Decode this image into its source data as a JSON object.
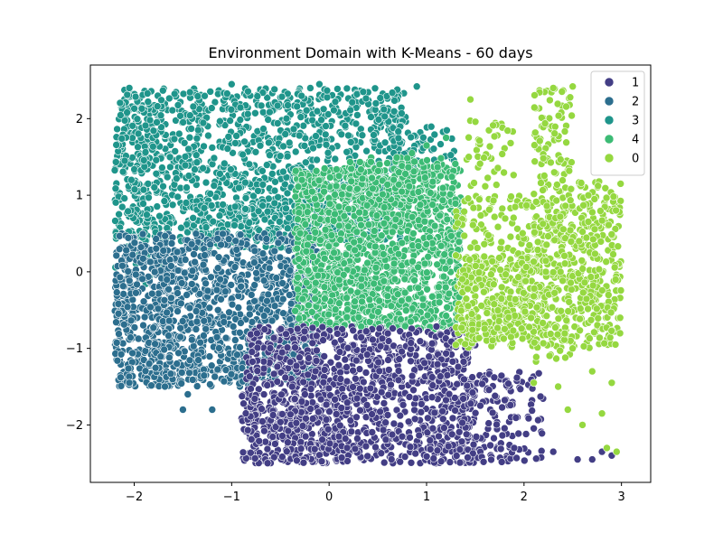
{
  "chart_data": {
    "type": "scatter",
    "title": "Environment Domain with K-Means - 60 days",
    "xlabel": "",
    "ylabel": "",
    "xlim": [
      -2.45,
      3.3
    ],
    "ylim": [
      -2.75,
      2.7
    ],
    "xticks": [
      -2,
      -1,
      0,
      1,
      2,
      3
    ],
    "xtick_labels": [
      "−2",
      "−1",
      "0",
      "1",
      "2",
      "3"
    ],
    "yticks": [
      -2,
      -1,
      0,
      1,
      2
    ],
    "ytick_labels": [
      "−2",
      "−1",
      "0",
      "1",
      "2"
    ],
    "grid": false,
    "legend_position": "top-right",
    "legend": [
      "1",
      "2",
      "3",
      "4",
      "0"
    ],
    "colors": {
      "1": "#433e85",
      "2": "#2c6e8e",
      "3": "#1f958b",
      "4": "#3cbb75",
      "0": "#95d840"
    },
    "series": [
      {
        "name": "3",
        "regions": [
          {
            "x": [
              -2.2,
              0.8
            ],
            "y": [
              0.4,
              2.4
            ],
            "n": 1300
          },
          {
            "x": [
              -2.2,
              -1.7
            ],
            "y": [
              -0.2,
              2.4
            ],
            "n": 120
          },
          {
            "x": [
              0.6,
              1.3
            ],
            "y": [
              1.3,
              1.9
            ],
            "n": 60
          },
          {
            "x": [
              -1.4,
              0.2
            ],
            "y": [
              0.3,
              0.9
            ],
            "n": 200
          }
        ],
        "points": [
          [
            0.9,
            2.42
          ],
          [
            -0.1,
            2.45
          ],
          [
            0.35,
            2.35
          ],
          [
            -2.05,
            2.4
          ],
          [
            -1.0,
            2.45
          ]
        ]
      },
      {
        "name": "2",
        "regions": [
          {
            "x": [
              -2.2,
              -0.1
            ],
            "y": [
              -1.5,
              0.5
            ],
            "n": 900
          },
          {
            "x": [
              -1.8,
              -0.3
            ],
            "y": [
              -1.5,
              0.3
            ],
            "n": 300
          },
          {
            "x": [
              -2.2,
              -1.6
            ],
            "y": [
              -1.5,
              0.4
            ],
            "n": 120
          }
        ],
        "points": [
          [
            -1.5,
            -1.8
          ],
          [
            -1.2,
            -1.8
          ],
          [
            -1.45,
            -1.6
          ],
          [
            -2.05,
            -1.45
          ]
        ]
      },
      {
        "name": "4",
        "regions": [
          {
            "x": [
              -0.35,
              1.35
            ],
            "y": [
              -0.75,
              1.35
            ],
            "n": 1500
          },
          {
            "x": [
              0.2,
              1.3
            ],
            "y": [
              1.0,
              1.5
            ],
            "n": 120
          }
        ],
        "points": [
          [
            1.0,
            1.65
          ],
          [
            1.2,
            1.75
          ],
          [
            0.85,
            1.55
          ]
        ]
      },
      {
        "name": "1",
        "regions": [
          {
            "x": [
              -0.85,
              1.5
            ],
            "y": [
              -2.5,
              -0.7
            ],
            "n": 1100
          },
          {
            "x": [
              1.0,
              2.2
            ],
            "y": [
              -2.5,
              -1.3
            ],
            "n": 200
          },
          {
            "x": [
              -0.9,
              0.2
            ],
            "y": [
              -2.5,
              -1.6
            ],
            "n": 200
          }
        ],
        "points": [
          [
            2.55,
            -2.45
          ],
          [
            2.8,
            -2.35
          ],
          [
            2.9,
            -2.4
          ],
          [
            2.3,
            -2.35
          ],
          [
            2.7,
            -2.45
          ],
          [
            1.9,
            -2.3
          ]
        ]
      },
      {
        "name": "0",
        "regions": [
          {
            "x": [
              1.3,
              3.0
            ],
            "y": [
              -1.0,
              1.0
            ],
            "n": 500
          },
          {
            "x": [
              2.1,
              2.5
            ],
            "y": [
              -1.2,
              2.4
            ],
            "n": 220
          },
          {
            "x": [
              1.35,
              2.1
            ],
            "y": [
              -0.9,
              0.2
            ],
            "n": 250
          },
          {
            "x": [
              2.55,
              3.0
            ],
            "y": [
              -0.8,
              1.2
            ],
            "n": 100
          },
          {
            "x": [
              1.4,
              1.9
            ],
            "y": [
              1.1,
              2.0
            ],
            "n": 40
          }
        ],
        "points": [
          [
            2.3,
            2.4
          ],
          [
            2.5,
            2.42
          ],
          [
            1.45,
            2.25
          ],
          [
            2.8,
            -1.85
          ],
          [
            2.95,
            -2.35
          ],
          [
            2.9,
            -1.45
          ],
          [
            2.45,
            -1.8
          ],
          [
            2.7,
            -1.3
          ],
          [
            2.35,
            -1.5
          ],
          [
            2.6,
            -2.0
          ],
          [
            2.1,
            -1.45
          ],
          [
            2.85,
            -2.3
          ]
        ]
      }
    ]
  }
}
